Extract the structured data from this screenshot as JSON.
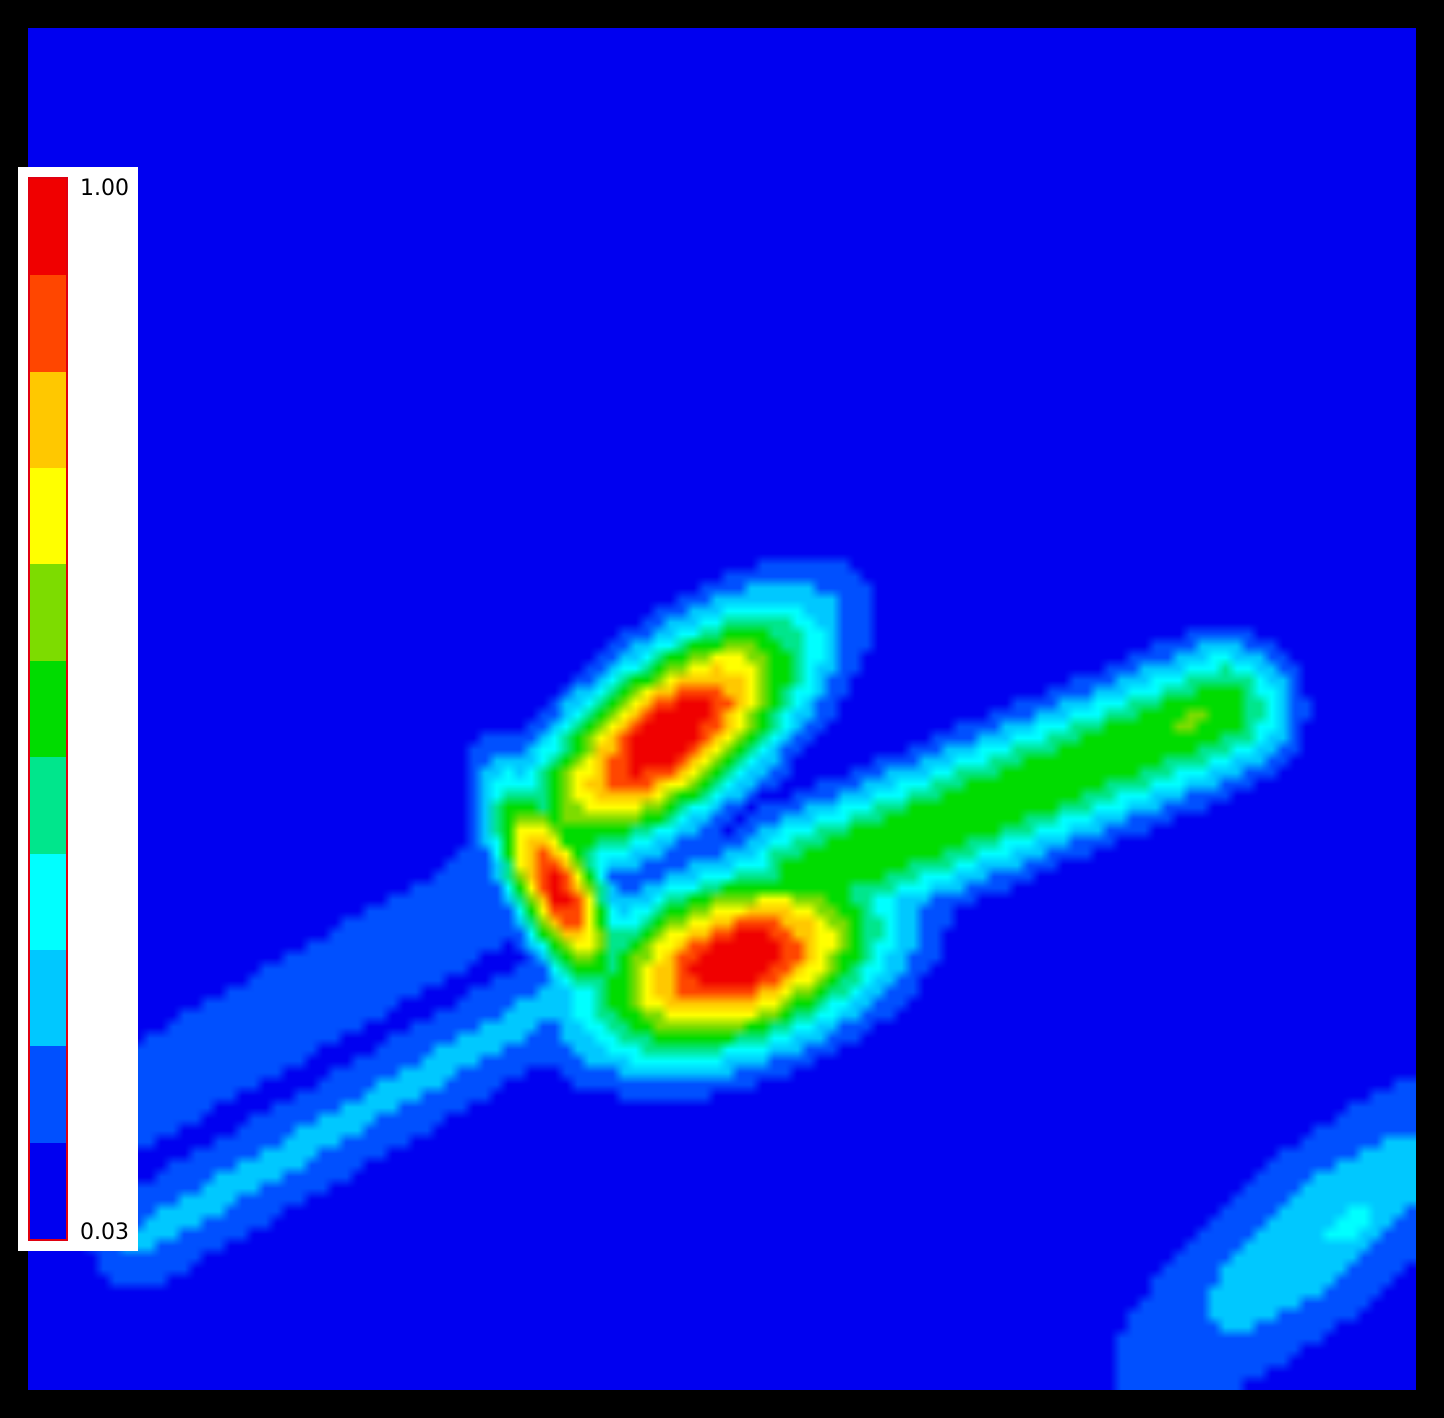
{
  "chart_data": {
    "type": "heatmap",
    "title": "",
    "xlabel": "",
    "ylabel": "",
    "colorbar": {
      "min_label": "0.03",
      "max_label": "1.00",
      "min": 0.03,
      "max": 1.0,
      "placement": "left",
      "levels": [
        "#0000f0",
        "#0050ff",
        "#00c8ff",
        "#00ffff",
        "#00e68c",
        "#00dc00",
        "#7ddc00",
        "#ffff00",
        "#ffc800",
        "#ff4600",
        "#f00000"
      ]
    },
    "features": [
      {
        "kind": "blob",
        "u": 0.46,
        "v": 0.52,
        "ru": 0.088,
        "rv": 0.038,
        "angle": -40,
        "value": 1.0
      },
      {
        "kind": "blob",
        "u": 0.51,
        "v": 0.685,
        "ru": 0.078,
        "rv": 0.044,
        "angle": -20,
        "value": 1.0
      },
      {
        "kind": "blob",
        "u": 0.38,
        "v": 0.63,
        "ru": 0.06,
        "rv": 0.022,
        "angle": 65,
        "value": 0.95
      },
      {
        "kind": "ridge",
        "u1": 0.56,
        "v1": 0.625,
        "u2": 0.86,
        "v2": 0.5,
        "width": 0.035,
        "value": 0.55
      },
      {
        "kind": "blob",
        "u": 0.835,
        "v": 0.51,
        "ru": 0.05,
        "rv": 0.026,
        "angle": -30,
        "value": 0.58
      },
      {
        "kind": "ridge",
        "u1": 0.0,
        "v1": 0.83,
        "u2": 0.33,
        "v2": 0.64,
        "width": 0.042,
        "value": 0.17
      },
      {
        "kind": "ridge",
        "u1": 0.08,
        "v1": 0.89,
        "u2": 0.42,
        "v2": 0.69,
        "width": 0.032,
        "value": 0.22
      },
      {
        "kind": "blob",
        "u": 0.93,
        "v": 0.885,
        "ru": 0.15,
        "rv": 0.05,
        "angle": -40,
        "value": 0.26
      },
      {
        "kind": "blob",
        "u": 0.95,
        "v": 0.88,
        "ru": 0.06,
        "rv": 0.025,
        "angle": -40,
        "value": 0.31
      },
      {
        "kind": "blob",
        "u": 0.82,
        "v": 0.06,
        "ru": 0.08,
        "rv": 0.07,
        "angle": 0,
        "value": 0.1
      },
      {
        "kind": "blob",
        "u": 0.985,
        "v": 0.23,
        "ru": 0.05,
        "rv": 0.11,
        "angle": 0,
        "value": 0.1
      },
      {
        "kind": "ridge",
        "u1": 0.52,
        "v1": 0.15,
        "u2": 0.64,
        "v2": 0.42,
        "width": 0.018,
        "value": 0.1
      },
      {
        "kind": "blob",
        "u": 0.082,
        "v": 0.27,
        "ru": 0.015,
        "rv": 0.05,
        "angle": 0,
        "value": 0.1
      },
      {
        "kind": "blob",
        "u": 0.86,
        "v": 0.66,
        "ru": 0.03,
        "rv": 0.07,
        "angle": 0,
        "value": 0.1
      }
    ]
  }
}
